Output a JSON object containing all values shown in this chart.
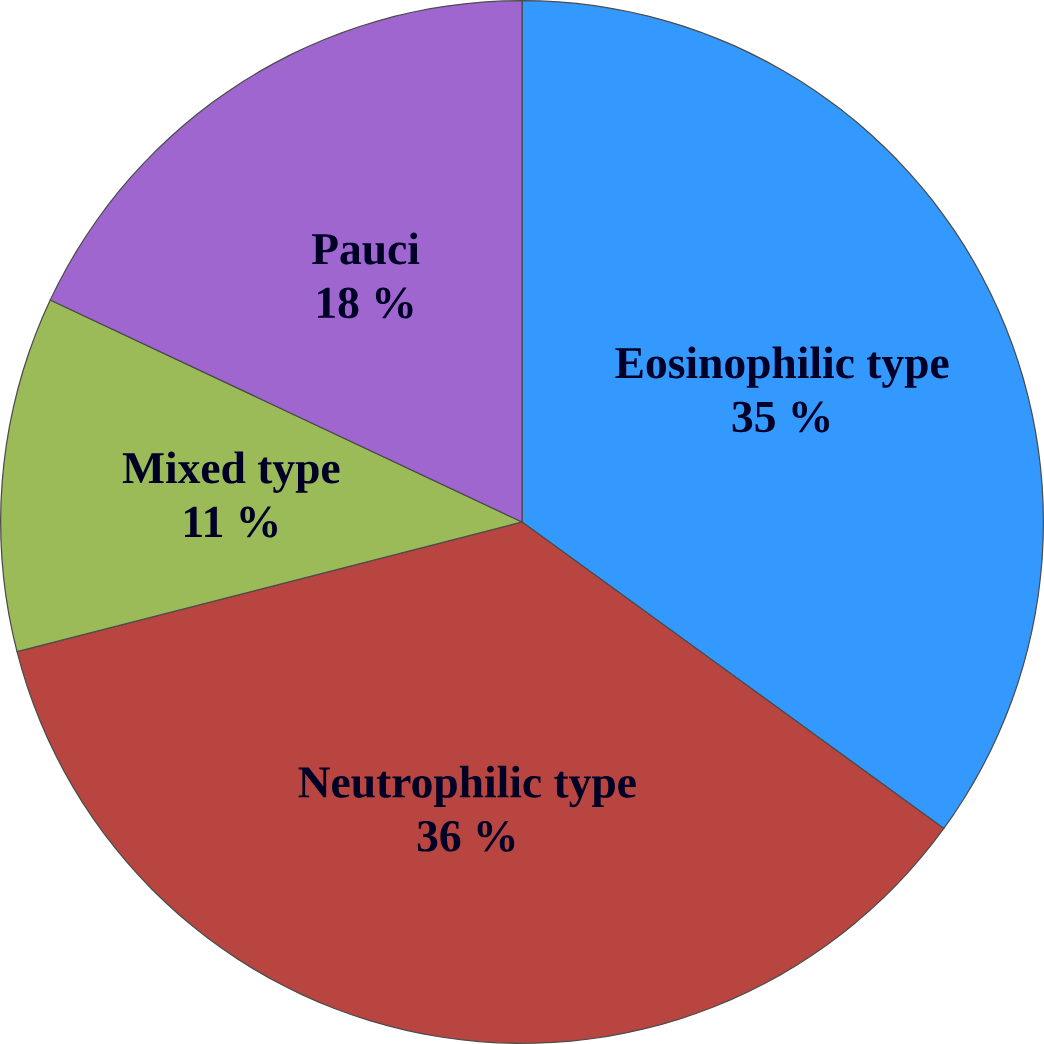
{
  "chart_data": {
    "type": "pie",
    "categories": [
      "Eosinophilic type",
      "Neutrophilic type",
      "Mixed type",
      "Pauci"
    ],
    "values": [
      35,
      36,
      11,
      18
    ],
    "value_labels": [
      "35 %",
      "36 %",
      "11 %",
      "18 %"
    ],
    "colors": [
      "#3399ff",
      "#b94540",
      "#9bbb59",
      "#a066d0"
    ]
  }
}
